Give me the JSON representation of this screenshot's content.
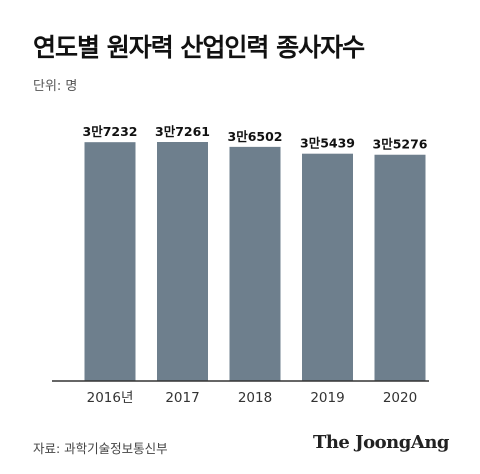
{
  "header": {
    "title": "연도별 원자력 산업인력 종사자수",
    "unit": "단위: 명"
  },
  "footer": {
    "source": "자료: 과학기술정보통신부",
    "logo_text": "The JoongAng"
  },
  "colors": {
    "bar": "#6e7f8d",
    "axis": "#333333"
  },
  "chart_data": {
    "type": "bar",
    "categories": [
      "2016년",
      "2017",
      "2018",
      "2019",
      "2020"
    ],
    "values": [
      37232,
      37261,
      36502,
      35439,
      35276
    ],
    "data_labels": [
      "3만7232",
      "3만7261",
      "3만6502",
      "3만5439",
      "3만5276"
    ],
    "title": "연도별 원자력 산업인력 종사자수",
    "ylabel": "",
    "xlabel": "",
    "ylim": [
      0,
      37261
    ],
    "grid": false,
    "legend": "none"
  }
}
